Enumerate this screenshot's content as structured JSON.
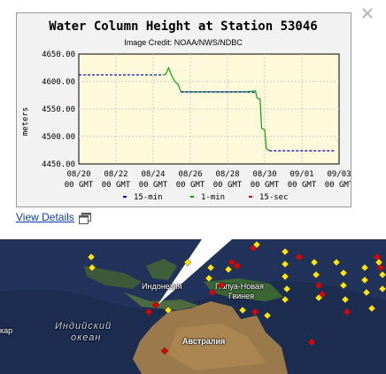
{
  "popup": {
    "view_details_label": "View Details",
    "close_icon": "close-icon",
    "external_icon": "new-window-icon"
  },
  "chart_data": {
    "type": "line",
    "title": "Water Column Height at Station 53046",
    "subtitle": "Image Credit: NOAA/NWS/NDBC",
    "ylabel": "meters",
    "ylim": [
      4450,
      4650
    ],
    "yticks": [
      "4650.00",
      "4600.00",
      "4550.00",
      "4500.00",
      "4450.00"
    ],
    "xticks": [
      {
        "date": "08/20",
        "tz": "00 GMT"
      },
      {
        "date": "08/22",
        "tz": "00 GMT"
      },
      {
        "date": "08/24",
        "tz": "00 GMT"
      },
      {
        "date": "08/26",
        "tz": "00 GMT"
      },
      {
        "date": "08/28",
        "tz": "00 GMT"
      },
      {
        "date": "08/30",
        "tz": "00 GMT"
      },
      {
        "date": "09/01",
        "tz": "00 GMT"
      },
      {
        "date": "09/03",
        "tz": "00 GMT"
      }
    ],
    "grid": true,
    "background": "#fff9dc",
    "series": [
      {
        "name": "15-min",
        "color": "#0000cc",
        "style": "dashed",
        "x": [
          "08/20",
          "08/21",
          "08/22",
          "08/23",
          "08/24",
          "08/24 12:00"
        ],
        "y": [
          4612,
          4612,
          4612,
          4612,
          4612,
          4612
        ],
        "x2": [
          "08/25 12:00",
          "08/26",
          "08/27",
          "08/28",
          "08/29",
          "08/29 12:00"
        ],
        "y2": [
          4581,
          4581,
          4581,
          4581,
          4581,
          4580
        ],
        "x3": [
          "08/30 06:00",
          "08/31",
          "09/01",
          "09/02",
          "09/02 18:00"
        ],
        "y3": [
          4474,
          4474,
          4474,
          4474,
          4474
        ]
      },
      {
        "name": "1-min",
        "color": "#00aa00",
        "points": [
          [
            "08/24 12:00",
            4612
          ],
          [
            "08/24 16:00",
            4613
          ],
          [
            "08/24 20:00",
            4625
          ],
          [
            "08/25",
            4610
          ],
          [
            "08/25 04:00",
            4600
          ],
          [
            "08/25 08:00",
            4595
          ],
          [
            "08/25 12:00",
            4581
          ],
          [
            "08/29",
            4581
          ],
          [
            "08/29 12:00",
            4583
          ],
          [
            "08/29 14:00",
            4570
          ],
          [
            "08/29 18:00",
            4568
          ],
          [
            "08/29 20:00",
            4515
          ],
          [
            "08/30",
            4512
          ],
          [
            "08/30 02:00",
            4478
          ],
          [
            "08/30 06:00",
            4474
          ]
        ]
      },
      {
        "name": "15-sec",
        "color": "#dd0000",
        "points": []
      }
    ],
    "legend": [
      "15-min",
      "1-min",
      "15-sec"
    ],
    "legend_position": "bottom"
  },
  "map": {
    "labels": {
      "indonesia": "Индонезия",
      "png_line1": "Папуа-Новая",
      "png_line2": "Гвинея",
      "indian_ocean_1": "Индийский",
      "indian_ocean_2": "океан",
      "australia": "Австралия",
      "left_cut": "кар"
    },
    "marker_colors": {
      "yellow": "#ffe600",
      "red": "#e00000"
    }
  }
}
